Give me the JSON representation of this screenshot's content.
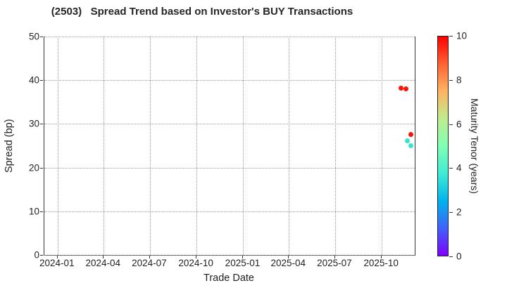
{
  "chart_data": {
    "type": "scatter",
    "title": "(2503)   Spread Trend based on Investor's BUY Transactions",
    "xlabel": "Trade Date",
    "ylabel": "Spread (bp)",
    "ylim": [
      0,
      50
    ],
    "yticks": [
      0,
      10,
      20,
      30,
      40,
      50
    ],
    "grid": true,
    "grid_style": "dotted",
    "x_domain_days": [
      -26,
      704
    ],
    "xticks": [
      {
        "label": "2024-01",
        "day": 0
      },
      {
        "label": "2024-04",
        "day": 91
      },
      {
        "label": "2024-07",
        "day": 182
      },
      {
        "label": "2024-10",
        "day": 274
      },
      {
        "label": "2025-01",
        "day": 366
      },
      {
        "label": "2025-04",
        "day": 456
      },
      {
        "label": "2025-07",
        "day": 547
      },
      {
        "label": "2025-10",
        "day": 639
      }
    ],
    "points": [
      {
        "date": "2025-11-08",
        "day": 677,
        "spread": 38.2,
        "tenor_years": 10,
        "color": "#fa1505"
      },
      {
        "date": "2025-11-18",
        "day": 687,
        "spread": 38.0,
        "tenor_years": 10,
        "color": "#fa1505"
      },
      {
        "date": "2025-11-27",
        "day": 696,
        "spread": 27.6,
        "tenor_years": 10,
        "color": "#fa1505"
      },
      {
        "date": "2025-11-20",
        "day": 689,
        "spread": 26.1,
        "tenor_years": 3.5,
        "color": "#36e4cd"
      },
      {
        "date": "2025-11-27",
        "day": 696,
        "spread": 25.0,
        "tenor_years": 3.5,
        "color": "#36e4cd"
      }
    ],
    "colorbar": {
      "label": "Maturity Tenor (years)",
      "min": 0,
      "max": 10,
      "ticks": [
        0,
        2,
        4,
        6,
        8,
        10
      ],
      "gradient_stops_bottom_to_top": [
        "#8000ff",
        "#4062fa",
        "#00b4ec",
        "#40ecd4",
        "#80ffb4",
        "#bfec8e",
        "#ffb462",
        "#ff6232",
        "#ff0000"
      ]
    }
  }
}
